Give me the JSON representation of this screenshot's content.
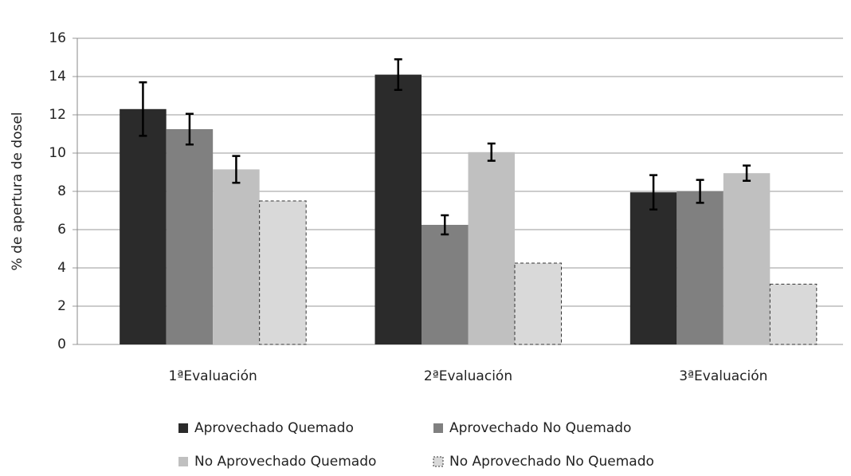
{
  "chart_data": {
    "type": "bar",
    "y_label": "% de apertura de dosel",
    "categories": [
      "1ªEvaluación",
      "2ªEvaluación",
      "3ªEvaluación"
    ],
    "series": [
      {
        "name": "Aprovechado Quemado",
        "color": "#2b2b2b",
        "values": [
          12.3,
          14.1,
          7.95
        ],
        "errors": [
          1.4,
          0.8,
          0.9
        ]
      },
      {
        "name": "Aprovechado No Quemado",
        "color": "#808080",
        "values": [
          11.25,
          6.25,
          8.0
        ],
        "errors": [
          0.8,
          0.5,
          0.6
        ]
      },
      {
        "name": "No Aprovechado Quemado",
        "color": "#c0c0c0",
        "values": [
          9.15,
          10.05,
          8.95
        ],
        "errors": [
          0.7,
          0.45,
          0.4
        ]
      },
      {
        "name": "No Aprovechado No Quemado",
        "color": "#d9d9d9",
        "values": [
          7.5,
          4.25,
          3.15
        ],
        "dashed": true
      }
    ],
    "ylim": [
      0,
      16
    ],
    "yticks": [
      0,
      2,
      4,
      6,
      8,
      10,
      12,
      14,
      16
    ],
    "grid": true
  }
}
